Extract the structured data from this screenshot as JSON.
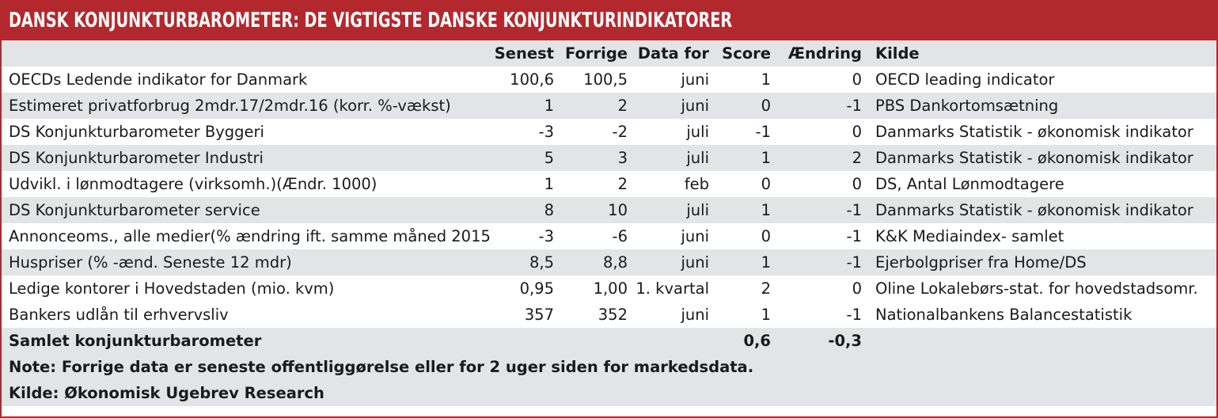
{
  "title": "DANSK KONJUNKTURBAROMETER: DE VIGTIGSTE DANSKE KONJUNKTURINDIKATORER",
  "columns": {
    "indicator": "",
    "senest": "Senest",
    "forrige": "Forrige",
    "data_for": "Data for",
    "score": "Score",
    "aendring": "Ændring",
    "kilde": "Kilde"
  },
  "rows": [
    {
      "indicator": "OECDs Ledende indikator for Danmark",
      "senest": "100,6",
      "forrige": "100,5",
      "data_for": "juni",
      "score": "1",
      "aendring": "0",
      "kilde": "OECD leading indicator"
    },
    {
      "indicator": "Estimeret privatforbrug 2mdr.17/2mdr.16 (korr. %-vækst)",
      "senest": "1",
      "forrige": "2",
      "data_for": "juni",
      "score": "0",
      "aendring": "-1",
      "kilde": "PBS Dankortomsætning"
    },
    {
      "indicator": "DS Konjunkturbarometer Byggeri",
      "senest": "-3",
      "forrige": "-2",
      "data_for": "juli",
      "score": "-1",
      "aendring": "0",
      "kilde": "Danmarks Statistik - økonomisk indikator"
    },
    {
      "indicator": "DS Konjunkturbarometer Industri",
      "senest": "5",
      "forrige": "3",
      "data_for": "juli",
      "score": "1",
      "aendring": "2",
      "kilde": "Danmarks Statistik - økonomisk indikator"
    },
    {
      "indicator": "Udvikl. i lønmodtagere (virksomh.)(Ændr. 1000)",
      "senest": "1",
      "forrige": "2",
      "data_for": "feb",
      "score": "0",
      "aendring": "0",
      "kilde": "DS, Antal Lønmodtagere"
    },
    {
      "indicator": "DS Konjunkturbarometer service",
      "senest": "8",
      "forrige": "10",
      "data_for": "juli",
      "score": "1",
      "aendring": "-1",
      "kilde": "Danmarks Statistik - økonomisk indikator"
    },
    {
      "indicator": "Annonceoms., alle medier(% ændring ift. samme måned 2015)",
      "senest": "-3",
      "forrige": "-6",
      "data_for": "juni",
      "score": "0",
      "aendring": "-1",
      "kilde": "K&K Mediaindex- samlet"
    },
    {
      "indicator": "Huspriser (% -ænd. Seneste 12 mdr)",
      "senest": "8,5",
      "forrige": "8,8",
      "data_for": "juni",
      "score": "1",
      "aendring": "-1",
      "kilde": "Ejerbolgpriser fra Home/DS"
    },
    {
      "indicator": "Ledige kontorer i Hovedstaden (mio. kvm)",
      "senest": "0,95",
      "forrige": "1,00",
      "data_for": "1. kvartal",
      "score": "2",
      "aendring": "0",
      "kilde": "Oline Lokalebørs-stat. for hovedstadsomr."
    },
    {
      "indicator": "Bankers udlån til erhvervsliv",
      "senest": "357",
      "forrige": "352",
      "data_for": "juni",
      "score": "1",
      "aendring": "-1",
      "kilde": "Nationalbankens Balancestatistik"
    }
  ],
  "total": {
    "indicator": "Samlet konjunkturbarometer",
    "score": "0,6",
    "aendring": "-0,3"
  },
  "note": "Note: Forrige data er seneste offentliggørelse eller for 2 uger siden for markedsdata.",
  "source": "Kilde: Økonomisk Ugebrev Research",
  "colors": {
    "accent": "#b3282d",
    "stripe": "#e3e4e6"
  }
}
